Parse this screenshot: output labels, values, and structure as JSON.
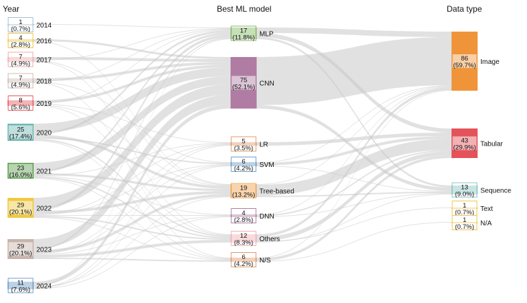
{
  "headers": {
    "year": "Year",
    "model": "Best ML model",
    "data_type": "Data type"
  },
  "years": [
    {
      "name": "2014",
      "count": "1",
      "pct": "(0.7%)",
      "value": 1,
      "color": "#9fbfd8"
    },
    {
      "name": "2016",
      "count": "4",
      "pct": "(2.8%)",
      "value": 4,
      "color": "#f0c64a"
    },
    {
      "name": "2017",
      "count": "7",
      "pct": "(4.9%)",
      "value": 7,
      "color": "#f0a8ac"
    },
    {
      "name": "2018",
      "count": "7",
      "pct": "(4.9%)",
      "value": 7,
      "color": "#ccbcb4"
    },
    {
      "name": "2019",
      "count": "8",
      "pct": "(5.6%)",
      "value": 8,
      "color": "#e8585c"
    },
    {
      "name": "2020",
      "count": "25",
      "pct": "(17.4%)",
      "value": 25,
      "color": "#72b8b4"
    },
    {
      "name": "2021",
      "count": "23",
      "pct": "(16.0%)",
      "value": 23,
      "color": "#5da050"
    },
    {
      "name": "2022",
      "count": "29",
      "pct": "(20.1%)",
      "value": 29,
      "color": "#f0c840"
    },
    {
      "name": "2023",
      "count": "29",
      "pct": "(20.1%)",
      "value": 29,
      "color": "#c8b4ac"
    },
    {
      "name": "2024",
      "count": "11",
      "pct": "(7.6%)",
      "value": 11,
      "color": "#6c9cc8"
    }
  ],
  "models": [
    {
      "name": "MLP",
      "count": "17",
      "pct": "(11.8%)",
      "value": 17,
      "color": "#80b860"
    },
    {
      "name": "CNN",
      "count": "75",
      "pct": "(52.1%)",
      "value": 75,
      "color": "#b07ca4"
    },
    {
      "name": "LR",
      "count": "5",
      "pct": "(3.5%)",
      "value": 5,
      "color": "#e09a64"
    },
    {
      "name": "SVM",
      "count": "6",
      "pct": "(4.2%)",
      "value": 6,
      "color": "#6c9cc8"
    },
    {
      "name": "Tree-based",
      "count": "19",
      "pct": "(13.2%)",
      "value": 19,
      "color": "#f0a04a"
    },
    {
      "name": "DNN",
      "count": "4",
      "pct": "(2.8%)",
      "value": 4,
      "color": "#b07ca4"
    },
    {
      "name": "Others",
      "count": "12",
      "pct": "(8.3%)",
      "value": 12,
      "color": "#f0aeb4"
    },
    {
      "name": "N/S",
      "count": "6",
      "pct": "(4.2%)",
      "value": 6,
      "color": "#e09a64"
    }
  ],
  "data_types": [
    {
      "name": "Image",
      "count": "86",
      "pct": "(59.7%)",
      "value": 86,
      "color": "#f0943a"
    },
    {
      "name": "Tabular",
      "count": "43",
      "pct": "(29.9%)",
      "value": 43,
      "color": "#e4525a"
    },
    {
      "name": "Sequence",
      "count": "13",
      "pct": "(9.0%)",
      "value": 13,
      "color": "#88c4c4"
    },
    {
      "name": "Text",
      "count": "1",
      "pct": "(0.7%)",
      "value": 1,
      "color": "#f0c64a"
    },
    {
      "name": "N/A",
      "count": "1",
      "pct": "(0.7%)",
      "value": 1,
      "color": "#f0c64a"
    }
  ],
  "links_year_model": [
    [
      "2014",
      "MLP",
      1
    ],
    [
      "2016",
      "CNN",
      3
    ],
    [
      "2016",
      "Tree-based",
      1
    ],
    [
      "2017",
      "CNN",
      4
    ],
    [
      "2017",
      "MLP",
      1
    ],
    [
      "2017",
      "Tree-based",
      1
    ],
    [
      "2017",
      "Others",
      1
    ],
    [
      "2018",
      "CNN",
      4
    ],
    [
      "2018",
      "MLP",
      1
    ],
    [
      "2018",
      "SVM",
      1
    ],
    [
      "2018",
      "N/S",
      1
    ],
    [
      "2019",
      "CNN",
      4
    ],
    [
      "2019",
      "MLP",
      1
    ],
    [
      "2019",
      "LR",
      1
    ],
    [
      "2019",
      "Tree-based",
      1
    ],
    [
      "2019",
      "Others",
      1
    ],
    [
      "2020",
      "CNN",
      13
    ],
    [
      "2020",
      "MLP",
      3
    ],
    [
      "2020",
      "Tree-based",
      4
    ],
    [
      "2020",
      "SVM",
      2
    ],
    [
      "2020",
      "Others",
      2
    ],
    [
      "2020",
      "N/S",
      1
    ],
    [
      "2021",
      "CNN",
      12
    ],
    [
      "2021",
      "MLP",
      3
    ],
    [
      "2021",
      "Tree-based",
      3
    ],
    [
      "2021",
      "LR",
      1
    ],
    [
      "2021",
      "DNN",
      1
    ],
    [
      "2021",
      "Others",
      2
    ],
    [
      "2021",
      "N/S",
      1
    ],
    [
      "2022",
      "CNN",
      15
    ],
    [
      "2022",
      "MLP",
      4
    ],
    [
      "2022",
      "Tree-based",
      4
    ],
    [
      "2022",
      "LR",
      1
    ],
    [
      "2022",
      "SVM",
      1
    ],
    [
      "2022",
      "DNN",
      1
    ],
    [
      "2022",
      "Others",
      2
    ],
    [
      "2022",
      "N/S",
      1
    ],
    [
      "2023",
      "CNN",
      14
    ],
    [
      "2023",
      "MLP",
      2
    ],
    [
      "2023",
      "Tree-based",
      4
    ],
    [
      "2023",
      "LR",
      1
    ],
    [
      "2023",
      "SVM",
      1
    ],
    [
      "2023",
      "DNN",
      1
    ],
    [
      "2023",
      "Others",
      4
    ],
    [
      "2023",
      "N/S",
      2
    ],
    [
      "2024",
      "CNN",
      6
    ],
    [
      "2024",
      "MLP",
      1
    ],
    [
      "2024",
      "Tree-based",
      1
    ],
    [
      "2024",
      "LR",
      1
    ],
    [
      "2024",
      "SVM",
      1
    ],
    [
      "2024",
      "DNN",
      1
    ]
  ],
  "links_model_type": [
    [
      "MLP",
      "Image",
      8
    ],
    [
      "MLP",
      "Tabular",
      6
    ],
    [
      "MLP",
      "Sequence",
      3
    ],
    [
      "CNN",
      "Image",
      70
    ],
    [
      "CNN",
      "Sequence",
      5
    ],
    [
      "LR",
      "Tabular",
      5
    ],
    [
      "SVM",
      "Image",
      1
    ],
    [
      "SVM",
      "Tabular",
      4
    ],
    [
      "SVM",
      "Sequence",
      1
    ],
    [
      "Tree-based",
      "Image",
      1
    ],
    [
      "Tree-based",
      "Tabular",
      16
    ],
    [
      "Tree-based",
      "Sequence",
      2
    ],
    [
      "DNN",
      "Image",
      1
    ],
    [
      "DNN",
      "Tabular",
      2
    ],
    [
      "DNN",
      "Sequence",
      1
    ],
    [
      "Others",
      "Image",
      4
    ],
    [
      "Others",
      "Tabular",
      6
    ],
    [
      "Others",
      "Text",
      1
    ],
    [
      "Others",
      "Sequence",
      1
    ],
    [
      "N/S",
      "Image",
      1
    ],
    [
      "N/S",
      "Tabular",
      4
    ],
    [
      "N/S",
      "N/A",
      1
    ]
  ]
}
